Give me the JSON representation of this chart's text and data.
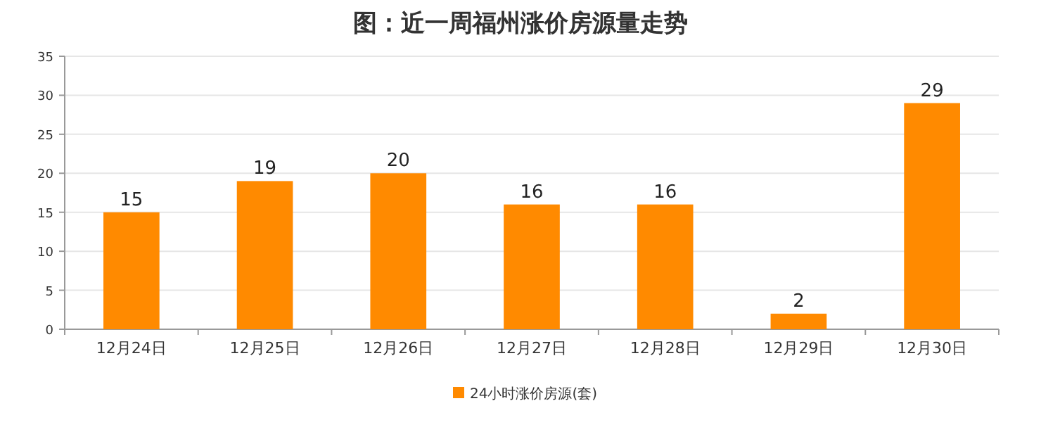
{
  "chart_data": {
    "type": "bar",
    "title": "图：近一周福州涨价房源量走势",
    "categories": [
      "12月24日",
      "12月25日",
      "12月26日",
      "12月27日",
      "12月28日",
      "12月29日",
      "12月30日"
    ],
    "series": [
      {
        "name": "24小时涨价房源(套)",
        "color": "#ff8a00",
        "values": [
          15,
          19,
          20,
          16,
          16,
          2,
          29
        ]
      }
    ],
    "ylim": [
      0,
      35
    ],
    "yticks": [
      0,
      5,
      10,
      15,
      20,
      25,
      30,
      35
    ],
    "grid": "y",
    "data_labels": true,
    "legend": "bottom"
  }
}
